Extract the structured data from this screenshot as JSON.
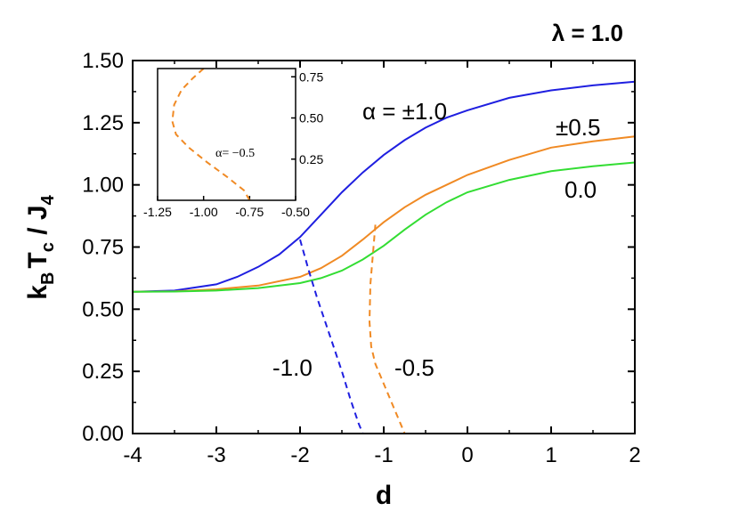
{
  "chart_data": [
    {
      "type": "line",
      "title": "λ = 1.0",
      "xlabel": "d",
      "ylabel": "k_B T_c / J_4",
      "ylabel_parts": {
        "k": "k",
        "B": "B",
        "T": "T",
        "c": "c",
        "rest": " / J",
        "sub4": "4"
      },
      "xlim": [
        -4,
        2
      ],
      "ylim": [
        0,
        1.5
      ],
      "xticks": [
        -4,
        -3,
        -2,
        -1,
        0,
        1,
        2
      ],
      "xtick_labels": [
        "-4",
        "-3",
        "-2",
        "-1",
        "0",
        "1",
        "2"
      ],
      "yticks": [
        0,
        0.25,
        0.5,
        0.75,
        1.0,
        1.25,
        1.5
      ],
      "ytick_labels": [
        "0.00",
        "0.25",
        "0.50",
        "0.75",
        "1.00",
        "1.25",
        "1.50"
      ],
      "grid": false,
      "series": [
        {
          "name": "α = ±1.0",
          "color": "#1f1fe0",
          "style": "solid",
          "x": [
            -4.0,
            -3.5,
            -3.0,
            -2.75,
            -2.5,
            -2.25,
            -2.0,
            -1.75,
            -1.5,
            -1.25,
            -1.0,
            -0.75,
            -0.5,
            -0.25,
            0.0,
            0.5,
            1.0,
            1.5,
            2.0
          ],
          "y": [
            0.57,
            0.575,
            0.6,
            0.63,
            0.67,
            0.72,
            0.79,
            0.88,
            0.97,
            1.05,
            1.12,
            1.18,
            1.23,
            1.27,
            1.3,
            1.35,
            1.38,
            1.4,
            1.415
          ]
        },
        {
          "name": "±0.5",
          "color": "#f08a24",
          "style": "solid",
          "x": [
            -4.0,
            -3.5,
            -3.0,
            -2.5,
            -2.0,
            -1.75,
            -1.5,
            -1.25,
            -1.0,
            -0.75,
            -0.5,
            -0.25,
            0.0,
            0.5,
            1.0,
            1.5,
            2.0
          ],
          "y": [
            0.57,
            0.572,
            0.58,
            0.595,
            0.63,
            0.665,
            0.715,
            0.78,
            0.85,
            0.91,
            0.96,
            1.0,
            1.04,
            1.1,
            1.15,
            1.175,
            1.195
          ]
        },
        {
          "name": "0.0",
          "color": "#33dd33",
          "style": "solid",
          "x": [
            -4.0,
            -3.5,
            -3.0,
            -2.5,
            -2.0,
            -1.75,
            -1.5,
            -1.25,
            -1.0,
            -0.75,
            -0.5,
            -0.25,
            0.0,
            0.5,
            1.0,
            1.5,
            2.0
          ],
          "y": [
            0.57,
            0.571,
            0.575,
            0.585,
            0.605,
            0.625,
            0.655,
            0.7,
            0.755,
            0.82,
            0.88,
            0.93,
            0.97,
            1.02,
            1.055,
            1.075,
            1.09
          ]
        },
        {
          "name": "-1.0",
          "color": "#1f1fe0",
          "style": "dashed",
          "x": [
            -2.0,
            -1.9,
            -1.8,
            -1.7,
            -1.6,
            -1.5,
            -1.4,
            -1.3,
            -1.25
          ],
          "y": [
            0.78,
            0.66,
            0.55,
            0.45,
            0.35,
            0.25,
            0.14,
            0.04,
            0.0
          ]
        },
        {
          "name": "-0.5",
          "color": "#f08a24",
          "style": "dashed",
          "x": [
            -1.1,
            -1.13,
            -1.16,
            -1.17,
            -1.15,
            -1.1,
            -1.0,
            -0.9,
            -0.8,
            -0.75
          ],
          "y": [
            0.84,
            0.72,
            0.6,
            0.45,
            0.35,
            0.28,
            0.2,
            0.12,
            0.04,
            0.0
          ]
        }
      ],
      "annotations": [
        "α = ±1.0",
        "±0.5",
        "0.0",
        "-1.0",
        "-0.5"
      ]
    },
    {
      "type": "line",
      "title": "",
      "xlim": [
        -1.25,
        -0.5
      ],
      "ylim": [
        0.0,
        0.8
      ],
      "xticks": [
        -1.25,
        -1.0,
        -0.75,
        -0.5
      ],
      "xtick_labels": [
        "-1.25",
        "-1.00",
        "-0.75",
        "-0.50"
      ],
      "yticks": [
        0.25,
        0.5,
        0.75
      ],
      "ytick_labels": [
        "0.25",
        "0.50",
        "0.75"
      ],
      "series": [
        {
          "name": "α = -0.5",
          "color": "#f08a24",
          "style": "dashed",
          "x": [
            -1.0,
            -1.06,
            -1.12,
            -1.16,
            -1.17,
            -1.15,
            -1.08,
            -0.98,
            -0.87,
            -0.78,
            -0.75
          ],
          "y": [
            0.8,
            0.74,
            0.67,
            0.58,
            0.48,
            0.4,
            0.32,
            0.23,
            0.14,
            0.06,
            0.0
          ]
        }
      ],
      "annotations": [
        "α= −0.5"
      ]
    }
  ]
}
